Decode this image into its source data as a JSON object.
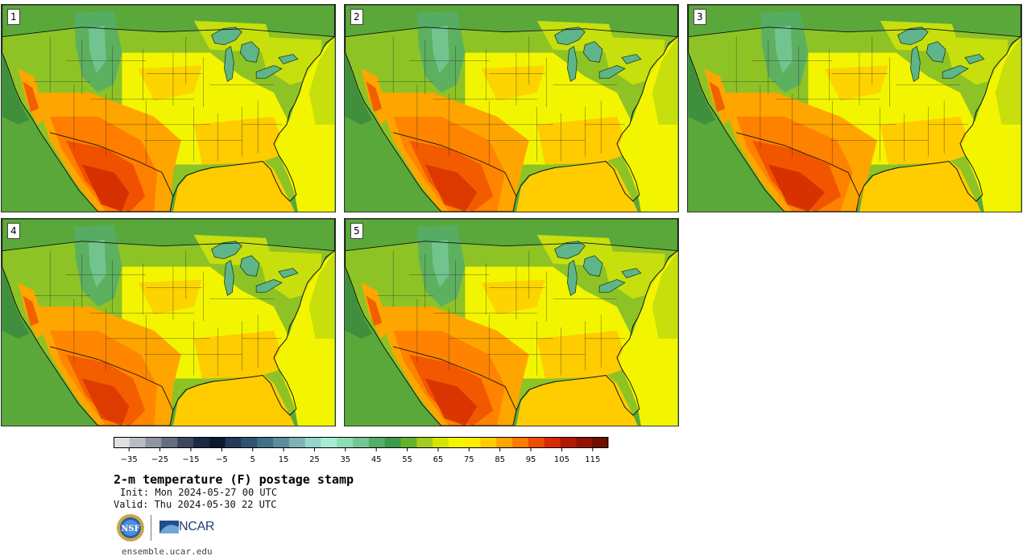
{
  "panels": [
    {
      "label": "1",
      "variant": 0
    },
    {
      "label": "2",
      "variant": 1
    },
    {
      "label": "3",
      "variant": 2
    },
    {
      "label": "4",
      "variant": 3
    },
    {
      "label": "5",
      "variant": 4
    }
  ],
  "colorbar": {
    "colors": [
      "#e0e0e0",
      "#b9bcc4",
      "#8f95a3",
      "#656d80",
      "#3c475f",
      "#1c2a44",
      "#0b1a2e",
      "#23395b",
      "#2e5472",
      "#3f7087",
      "#5b8e9b",
      "#7fb3b3",
      "#94d6cb",
      "#a8ecd6",
      "#8fdcb3",
      "#74c795",
      "#55ad6a",
      "#3c9a49",
      "#62b22e",
      "#a4cc1a",
      "#d6e600",
      "#f3f500",
      "#ffec00",
      "#ffcc00",
      "#ffa500",
      "#ff7a00",
      "#ee4d00",
      "#d42c00",
      "#b31800",
      "#931000",
      "#6e0e00"
    ],
    "tick_labels": [
      "−35",
      "−25",
      "−15",
      "−5",
      "5",
      "15",
      "25",
      "35",
      "45",
      "55",
      "65",
      "75",
      "85",
      "95",
      "105",
      "115"
    ],
    "tick_values": [
      -35,
      -25,
      -15,
      -5,
      5,
      15,
      25,
      35,
      45,
      55,
      65,
      75,
      85,
      95,
      105,
      115
    ],
    "min": -40,
    "max": 120
  },
  "title": "2-m temperature (F) postage stamp",
  "init": "Init: Mon 2024-05-27 00 UTC",
  "valid": "Valid: Thu 2024-05-30 22 UTC",
  "logos": {
    "nsf": "NSF",
    "ncar": "NCAR"
  },
  "website": "ensemble.ucar.edu"
}
